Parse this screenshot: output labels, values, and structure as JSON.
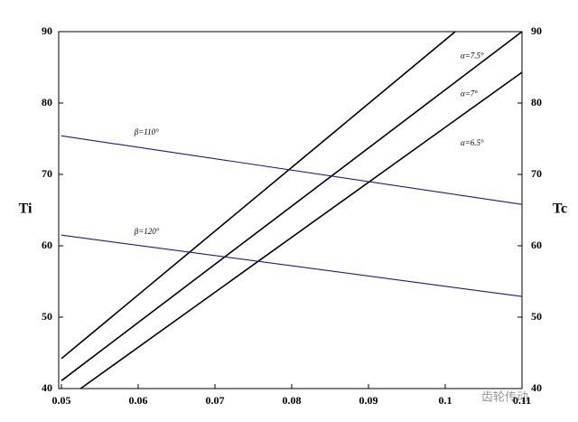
{
  "chart_data": {
    "type": "line",
    "ylabel": "Ti",
    "y2label": "Tc",
    "xlim": [
      0.05,
      0.11
    ],
    "xticks": [
      0.05,
      0.06,
      0.07,
      0.08,
      0.09,
      0.1,
      0.11
    ],
    "ylim": [
      40,
      90
    ],
    "yticks": [
      40,
      50,
      60,
      70,
      80,
      90
    ],
    "y2lim": [
      40,
      90
    ],
    "y2ticks": [
      40,
      50,
      60,
      70,
      80,
      90
    ],
    "series": [
      {
        "name": "α=7.5°",
        "color": "#000000",
        "x": [
          0.05,
          0.1013
        ],
        "values": [
          44.2,
          90
        ]
      },
      {
        "name": "α=7°",
        "color": "#000000",
        "x": [
          0.05,
          0.11
        ],
        "values": [
          41.1,
          90
        ]
      },
      {
        "name": "α=6.5°",
        "color": "#000000",
        "x": [
          0.0525,
          0.11
        ],
        "values": [
          40,
          84.3
        ]
      },
      {
        "name": "β=110°",
        "color": "#1a1a8c",
        "x": [
          0.05,
          0.11
        ],
        "values": [
          75.4,
          65.8
        ]
      },
      {
        "name": "β=120°",
        "color": "#1a1a8c",
        "x": [
          0.05,
          0.11
        ],
        "values": [
          61.5,
          52.9
        ]
      }
    ],
    "watermark": "齿轮传动"
  }
}
